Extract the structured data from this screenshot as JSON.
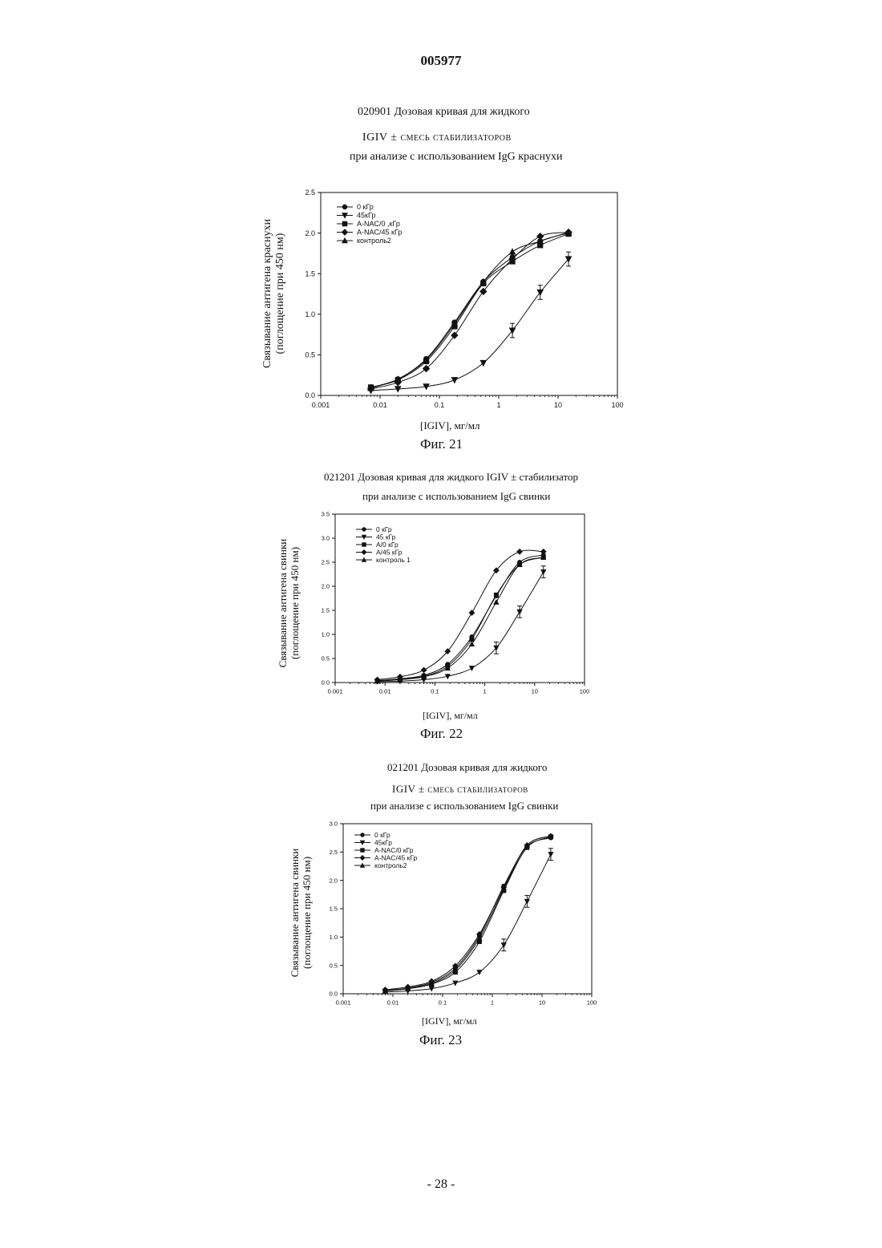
{
  "document_number": "005977",
  "page_number": "- 28 -",
  "figures": [
    {
      "title_lines": [
        "020901 Дозовая кривая для жидкого",
        "IGIV ± смесь стабилизаторов",
        "при анализе с использованием IgG краснухи"
      ],
      "caption": "Фиг. 21",
      "xlabel": "[IGIV], мг/мл",
      "ylabel_lines": [
        "Связывание антигена краснухи",
        "(поглощение при 450 нм)"
      ]
    },
    {
      "title_lines": [
        "021201 Дозовая кривая для жидкого IGIV ± стабилизатор",
        "при анализе с использованием IgG свинки"
      ],
      "caption": "Фиг. 22",
      "xlabel": "[IGIV], мг/мл",
      "ylabel_lines": [
        "Связывание антигена свинки",
        "(поглощение при 450 нм)"
      ]
    },
    {
      "title_lines": [
        "021201 Дозовая кривая для жидкого",
        "IGIV ± смесь стабилизаторов",
        "при анализе с использованием IgG свинки"
      ],
      "caption": "Фиг. 23",
      "xlabel": "[IGIV], мг/мл",
      "ylabel_lines": [
        "Связывание антигена свинки",
        "(поглощение при 450 нм)"
      ]
    }
  ],
  "chart_data": [
    {
      "type": "line",
      "title": "020901 Дозовая кривая для жидкого IGIV ± смесь стабилизаторов при анализе с использованием IgG краснухи",
      "xlabel": "[IGIV], мг/мл",
      "ylabel": "Связывание антигена краснухи (поглощение при 450 нм)",
      "x_scale": "log",
      "xlim": [
        0.001,
        100
      ],
      "ylim": [
        0,
        2.5
      ],
      "x_tick_labels": [
        "0.001",
        "0.01",
        "0.1",
        "1",
        "10",
        "100"
      ],
      "y_tick_labels": [
        "0.0",
        "0.5",
        "1.0",
        "1.5",
        "2.0",
        "2.5"
      ],
      "legend_position": "top-left",
      "grid": false,
      "x": [
        0.007,
        0.02,
        0.06,
        0.18,
        0.55,
        1.7,
        5,
        15
      ],
      "series": [
        {
          "name": "0 кГр",
          "marker": "circle",
          "values": [
            0.1,
            0.2,
            0.45,
            0.9,
            1.4,
            1.7,
            1.9,
            2.0
          ]
        },
        {
          "name": "45кГр",
          "marker": "triangle-down",
          "values": [
            0.06,
            0.08,
            0.11,
            0.19,
            0.4,
            0.8,
            1.27,
            1.68
          ]
        },
        {
          "name": "A-NAC/0 ,кГр",
          "marker": "square",
          "values": [
            0.1,
            0.19,
            0.42,
            0.85,
            1.38,
            1.65,
            1.85,
            1.99
          ]
        },
        {
          "name": "A-NAC/45 кГр",
          "marker": "diamond",
          "values": [
            0.08,
            0.16,
            0.33,
            0.74,
            1.28,
            1.68,
            1.96,
            2.01
          ]
        },
        {
          "name": "контроль2",
          "marker": "triangle-up",
          "values": [
            0.09,
            0.2,
            0.44,
            0.88,
            1.4,
            1.77,
            1.9,
            2.01
          ]
        }
      ]
    },
    {
      "type": "line",
      "title": "021201 Дозовая кривая для жидкого IGIV ± стабилизатор при анализе с использованием IgG свинки",
      "xlabel": "[IGIV], мг/мл",
      "ylabel": "Связывание антигена свинки (поглощение при 450 нм)",
      "x_scale": "log",
      "xlim": [
        0.001,
        100
      ],
      "ylim": [
        0,
        3.5
      ],
      "x_tick_labels": [
        "0.001",
        "0.01",
        "0.1",
        "1",
        "10",
        "100"
      ],
      "y_tick_labels": [
        "0.0",
        "0.5",
        "1.0",
        "1.5",
        "2.0",
        "2.5",
        "3.0",
        "3.5"
      ],
      "legend_position": "top-left",
      "grid": false,
      "x": [
        0.007,
        0.02,
        0.06,
        0.18,
        0.55,
        1.7,
        5,
        15
      ],
      "series": [
        {
          "name": "0 кГр",
          "marker": "circle",
          "values": [
            0.04,
            0.08,
            0.15,
            0.38,
            0.95,
            1.8,
            2.5,
            2.65
          ]
        },
        {
          "name": "45 кГр",
          "marker": "triangle-down",
          "values": [
            0.02,
            0.03,
            0.06,
            0.13,
            0.3,
            0.72,
            1.47,
            2.3
          ]
        },
        {
          "name": "A/0 кГр",
          "marker": "square",
          "values": [
            0.03,
            0.07,
            0.13,
            0.34,
            0.9,
            1.82,
            2.45,
            2.6
          ]
        },
        {
          "name": "A/45 кГр",
          "marker": "diamond",
          "values": [
            0.06,
            0.12,
            0.26,
            0.65,
            1.45,
            2.33,
            2.72,
            2.72
          ]
        },
        {
          "name": "контроль 1",
          "marker": "triangle-up",
          "values": [
            0.03,
            0.06,
            0.12,
            0.3,
            0.8,
            1.67,
            2.45,
            2.6
          ]
        }
      ]
    },
    {
      "type": "line",
      "title": "021201 Дозовая кривая для жидкого IGIV ± смесь стабилизаторов при анализе с использованием IgG свинки",
      "xlabel": "[IGIV], мг/мл",
      "ylabel": "Связывание антигена свинки (поглощение при 450 нм)",
      "x_scale": "log",
      "xlim": [
        0.001,
        100
      ],
      "ylim": [
        0,
        3.0
      ],
      "x_tick_labels": [
        "0.001",
        "0.01",
        "0.1",
        "1",
        "10",
        "100"
      ],
      "y_tick_labels": [
        "0.0",
        "0.5",
        "1.0",
        "1.5",
        "2.0",
        "2.5",
        "3.0"
      ],
      "legend_position": "top-left",
      "grid": false,
      "x": [
        0.007,
        0.02,
        0.06,
        0.18,
        0.55,
        1.7,
        5,
        15
      ],
      "series": [
        {
          "name": "0 кГр",
          "marker": "circle",
          "values": [
            0.06,
            0.1,
            0.2,
            0.45,
            1.02,
            1.9,
            2.6,
            2.75
          ]
        },
        {
          "name": "45кГр",
          "marker": "triangle-down",
          "values": [
            0.03,
            0.05,
            0.09,
            0.19,
            0.38,
            0.86,
            1.63,
            2.46
          ]
        },
        {
          "name": "A-NAC/0 кГр",
          "marker": "square",
          "values": [
            0.05,
            0.09,
            0.17,
            0.38,
            0.92,
            1.82,
            2.58,
            2.77
          ]
        },
        {
          "name": "A-NAC/45 кГр",
          "marker": "diamond",
          "values": [
            0.07,
            0.12,
            0.22,
            0.49,
            1.05,
            1.88,
            2.62,
            2.78
          ]
        },
        {
          "name": "контроль2",
          "marker": "triangle-up",
          "values": [
            0.05,
            0.09,
            0.18,
            0.42,
            0.98,
            1.85,
            2.62,
            2.78
          ]
        }
      ]
    }
  ]
}
